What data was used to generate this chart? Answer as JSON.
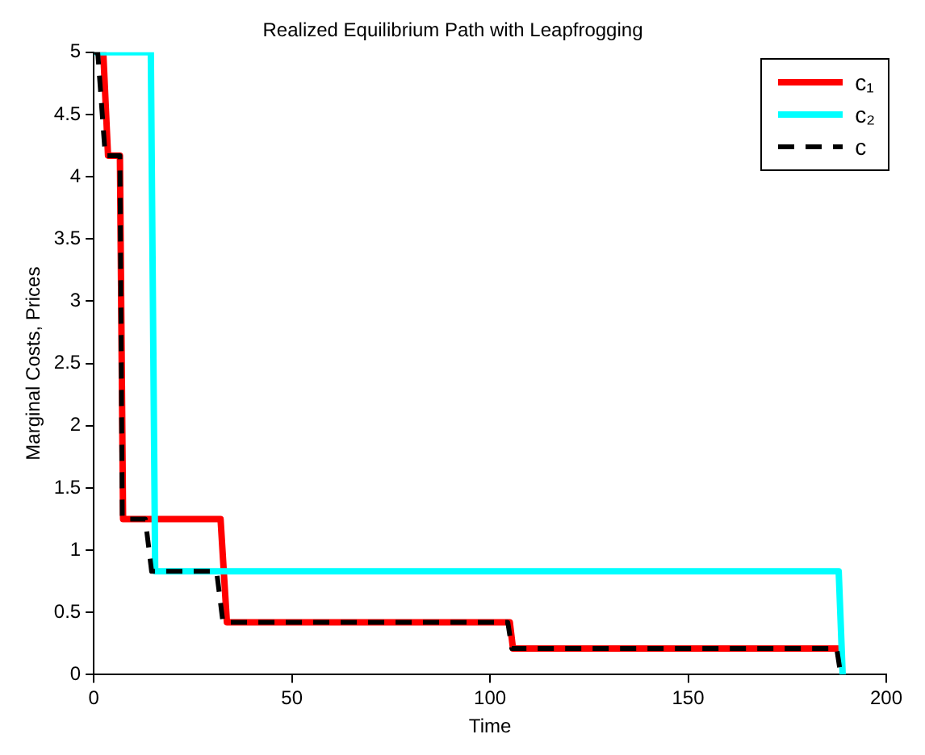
{
  "chart_data": {
    "type": "line",
    "title": "Realized Equilibrium Path with Leapfrogging",
    "xlabel": "Time",
    "ylabel": "Marginal Costs, Prices",
    "series": [
      {
        "name": "c₁",
        "color": "#ff0000",
        "x": [
          0,
          2.4,
          3.6,
          6.6,
          7.4,
          32,
          33.6,
          105,
          105.8,
          188
        ],
        "values": [
          5,
          5,
          4.17,
          4.17,
          1.25,
          1.25,
          0.42,
          0.42,
          0.21,
          0.21
        ]
      },
      {
        "name": "c₂",
        "color": "#00ffff",
        "x": [
          0,
          14.4,
          15.5,
          188,
          189
        ],
        "values": [
          5,
          5,
          0.83,
          0.83,
          0
        ]
      },
      {
        "name": "c",
        "color": "#000000",
        "line_style": "dashed",
        "x": [
          0,
          1,
          2.9,
          6.6,
          7.2,
          13,
          14.6,
          31,
          32.6,
          104.5,
          105.5,
          187.5,
          188.5
        ],
        "values": [
          5,
          5,
          4.17,
          4.17,
          1.25,
          1.25,
          0.83,
          0.83,
          0.42,
          0.42,
          0.21,
          0.21,
          0
        ]
      }
    ],
    "xlim": [
      0,
      200
    ],
    "xticks": [
      0,
      50,
      100,
      150,
      200
    ],
    "ylim": [
      0,
      5
    ],
    "yticks": [
      0,
      0.5,
      1,
      1.5,
      2,
      2.5,
      3,
      3.5,
      4,
      4.5,
      5
    ],
    "grid": false,
    "legend": "top right",
    "marker": "none",
    "line_style": "solid"
  }
}
